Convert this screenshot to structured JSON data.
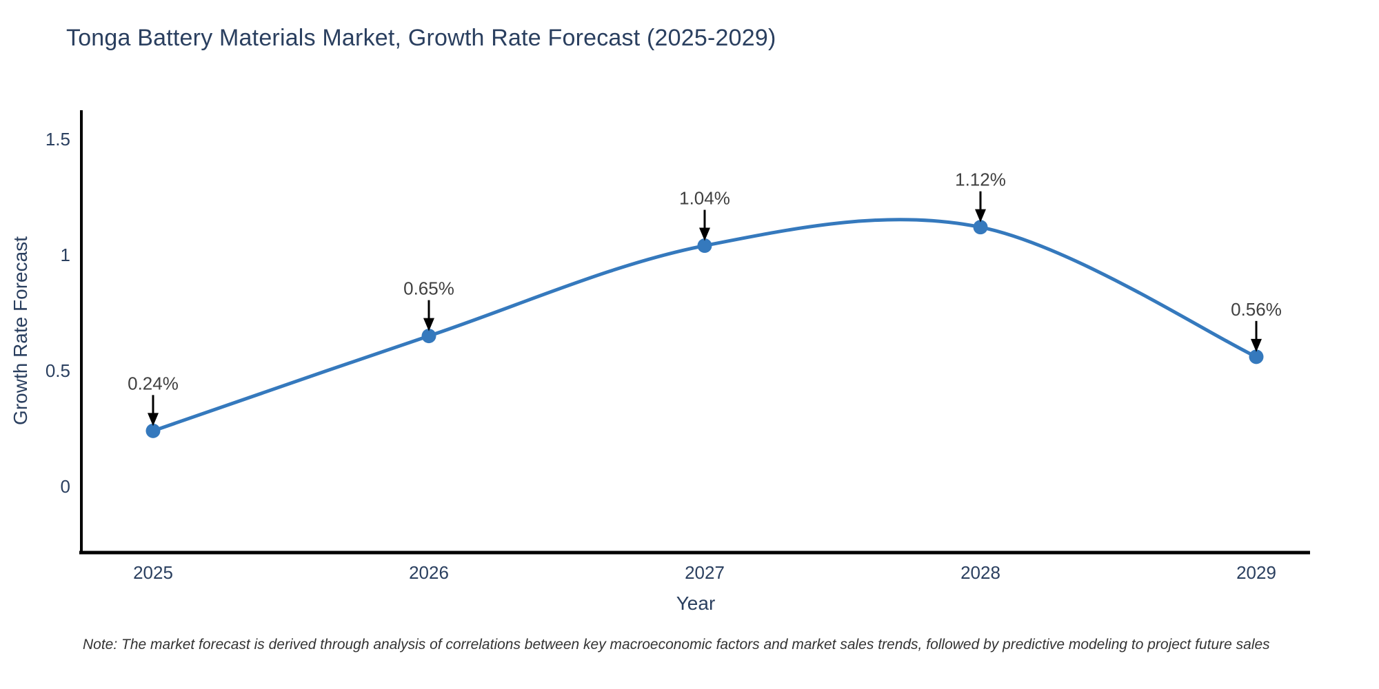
{
  "chart_data": {
    "type": "line",
    "title": "Tonga Battery Materials Market, Growth Rate Forecast (2025-2029)",
    "xlabel": "Year",
    "ylabel": "Growth Rate Forecast",
    "x": [
      2025,
      2026,
      2027,
      2028,
      2029
    ],
    "y": [
      0.24,
      0.65,
      1.04,
      1.12,
      0.56
    ],
    "point_labels": [
      "0.24%",
      "0.65%",
      "1.04%",
      "1.12%",
      "0.56%"
    ],
    "yticks": [
      0,
      0.5,
      1,
      1.5
    ],
    "ylim": [
      -0.29,
      1.63
    ],
    "line_shape": "spline",
    "grid": false,
    "legend": "none",
    "line_color": "#3579bd",
    "marker_color": "#3579bd",
    "axis_line_color": "#000000",
    "annotation_arrow_color": "#000000",
    "note": "Note: The market forecast is derived through analysis of correlations between key macroeconomic factors and market sales trends, followed by predictive modeling to project future sales"
  }
}
